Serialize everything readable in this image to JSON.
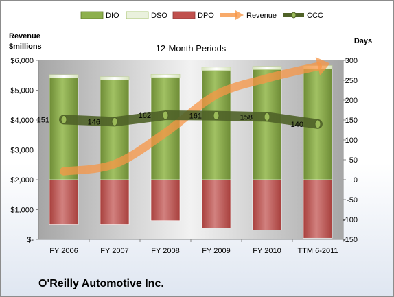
{
  "chart_data": {
    "type": "bar",
    "subtitle": "12-Month Periods",
    "company": "O'Reilly Automotive Inc.",
    "left_axis_title": [
      "Revenue",
      "$millions"
    ],
    "right_axis_title": "Days",
    "categories": [
      "FY 2006",
      "FY 2007",
      "FY 2008",
      "FY 2009",
      "FY 2010",
      "TTM 6-2011"
    ],
    "left_ticks": [
      "$-",
      "$1,000",
      "$2,000",
      "$3,000",
      "$4,000",
      "$5,000",
      "$6,000"
    ],
    "left_ylim": [
      0,
      6000
    ],
    "right_ticks": [
      "-150",
      "-100",
      "-50",
      "0",
      "50",
      "100",
      "150",
      "200",
      "250",
      "300"
    ],
    "right_ylim": [
      -150,
      300
    ],
    "legend_position": "top",
    "gridlines": false,
    "series": [
      {
        "name": "DIO",
        "color": "#77933c",
        "values": [
          256,
          251,
          257,
          275,
          277,
          279
        ]
      },
      {
        "name": "DSO",
        "color": "#eaf1dd",
        "values": [
          8,
          8,
          8,
          8,
          8,
          8
        ]
      },
      {
        "name": "DPO",
        "color": "#c0504d",
        "values": [
          -113,
          -113,
          -103,
          -122,
          -127,
          -147
        ]
      },
      {
        "name": "Revenue",
        "color": "#f79646",
        "values": [
          2283,
          2522,
          3576,
          4847,
          5398,
          5800
        ]
      },
      {
        "name": "CCC",
        "color": "#4f6228",
        "values": [
          151,
          146,
          162,
          161,
          158,
          140
        ]
      }
    ]
  }
}
